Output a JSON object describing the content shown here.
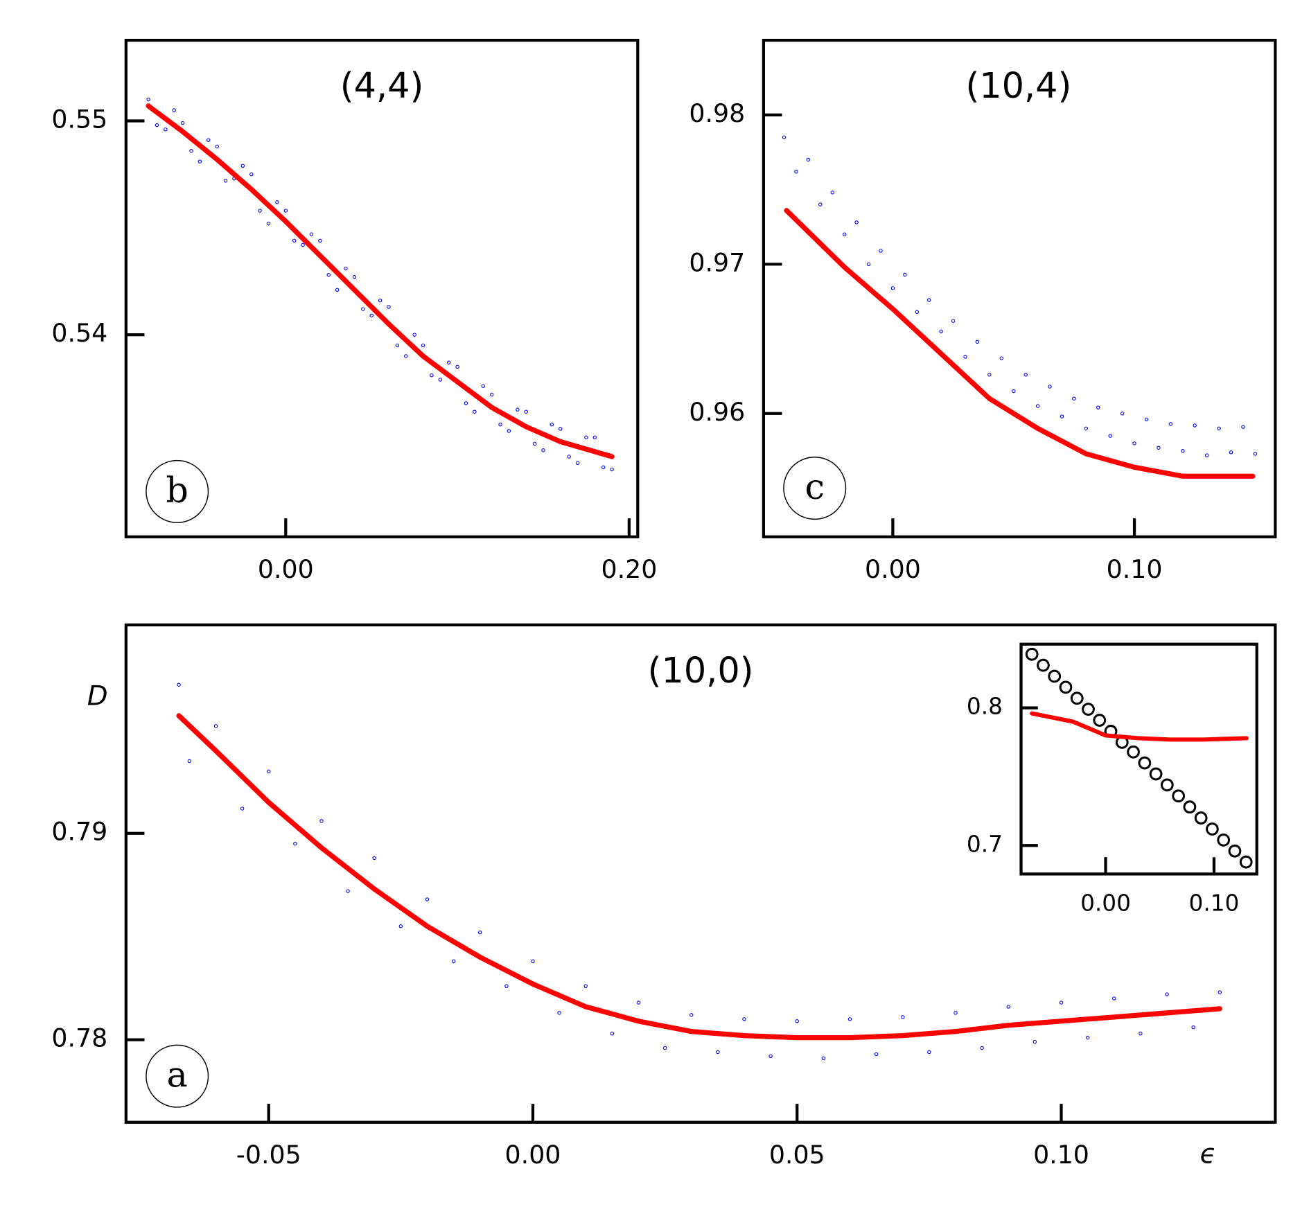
{
  "chart_data": [
    {
      "type": "scatter",
      "title": "(4,4)",
      "annotation": "b",
      "xlim": [
        -0.093,
        0.205
      ],
      "ylim": [
        0.53055,
        0.55377
      ],
      "xticks": [
        {
          "value": 0,
          "label": "0.00"
        },
        {
          "value": 0.2,
          "label": "0.20"
        }
      ],
      "yticks": [
        0.54,
        0.55
      ],
      "series": [
        {
          "type": "scatter",
          "color": "#0000ff",
          "x": [
            -0.08,
            -0.07,
            -0.06,
            -0.05,
            -0.04,
            -0.03,
            -0.02,
            -0.01,
            0,
            0.01,
            0.02,
            0.03,
            0.04,
            0.05,
            0.06,
            0.07,
            0.08,
            0.09,
            0.1,
            0.11,
            0.12,
            0.13,
            0.14,
            0.15,
            0.16,
            0.17,
            0.18,
            0.19,
            -0.075,
            -0.065,
            -0.055,
            -0.045,
            -0.035,
            -0.025,
            -0.015,
            -0.005,
            0.005,
            0.015,
            0.025,
            0.035,
            0.045,
            0.055,
            0.065,
            0.075,
            0.085,
            0.095,
            0.105,
            0.115,
            0.125,
            0.135,
            0.145,
            0.155,
            0.165,
            0.175,
            0.185
          ],
          "values": [
            0.551,
            0.5496,
            0.5499,
            0.5481,
            0.5488,
            0.5473,
            0.5475,
            0.5452,
            0.5458,
            0.5442,
            0.5444,
            0.5421,
            0.5427,
            0.5409,
            0.5413,
            0.539,
            0.5395,
            0.5379,
            0.5385,
            0.5364,
            0.5372,
            0.5355,
            0.5364,
            0.5346,
            0.5356,
            0.534,
            0.5352,
            0.5337,
            0.5498,
            0.5505,
            0.5486,
            0.5491,
            0.5472,
            0.5479,
            0.5458,
            0.5462,
            0.5444,
            0.5447,
            0.5428,
            0.5431,
            0.5412,
            0.5416,
            0.5395,
            0.54,
            0.5381,
            0.5387,
            0.5368,
            0.5376,
            0.5358,
            0.5365,
            0.5349,
            0.5358,
            0.5343,
            0.5352,
            0.5338
          ]
        },
        {
          "type": "line",
          "color": "#ff0000",
          "x": [
            -0.08,
            -0.06,
            -0.04,
            -0.02,
            0,
            0.02,
            0.04,
            0.06,
            0.08,
            0.1,
            0.12,
            0.14,
            0.16,
            0.19
          ],
          "values": [
            0.5507,
            0.5495,
            0.5482,
            0.5468,
            0.5453,
            0.5437,
            0.5421,
            0.5405,
            0.539,
            0.5378,
            0.5366,
            0.5357,
            0.535,
            0.5343
          ]
        }
      ]
    },
    {
      "type": "scatter",
      "title": "(10,4)",
      "annotation": "c",
      "xlim": [
        -0.0535,
        0.1583
      ],
      "ylim": [
        0.95174,
        0.985
      ],
      "xticks": [
        {
          "value": 0,
          "label": "0.00"
        },
        {
          "value": 0.1,
          "label": "0.10"
        }
      ],
      "yticks": [
        0.96,
        0.97,
        0.98
      ],
      "series": [
        {
          "type": "scatter",
          "color": "#0000ff",
          "x": [
            -0.045,
            -0.04,
            -0.035,
            -0.03,
            -0.025,
            -0.02,
            -0.015,
            -0.01,
            -0.005,
            0,
            0.005,
            0.01,
            0.015,
            0.02,
            0.025,
            0.03,
            0.035,
            0.04,
            0.045,
            0.05,
            0.055,
            0.06,
            0.065,
            0.07,
            0.075,
            0.08,
            0.085,
            0.09,
            0.095,
            0.1,
            0.105,
            0.11,
            0.115,
            0.12,
            0.125,
            0.13,
            0.135,
            0.14,
            0.145,
            0.15
          ],
          "values": [
            0.9785,
            0.9762,
            0.977,
            0.974,
            0.9748,
            0.972,
            0.9728,
            0.97,
            0.9709,
            0.9684,
            0.9693,
            0.9668,
            0.9676,
            0.9655,
            0.9662,
            0.9638,
            0.9648,
            0.9626,
            0.9637,
            0.9615,
            0.9626,
            0.9605,
            0.9618,
            0.9598,
            0.961,
            0.959,
            0.9604,
            0.9585,
            0.96,
            0.958,
            0.9596,
            0.9577,
            0.9593,
            0.9575,
            0.9592,
            0.9572,
            0.959,
            0.9574,
            0.9591,
            0.9573
          ]
        },
        {
          "type": "line",
          "color": "#ff0000",
          "x": [
            -0.044,
            -0.02,
            0,
            0.02,
            0.04,
            0.06,
            0.08,
            0.1,
            0.12,
            0.149
          ],
          "values": [
            0.9736,
            0.9698,
            0.967,
            0.964,
            0.961,
            0.959,
            0.9573,
            0.9564,
            0.9558,
            0.9558
          ]
        }
      ]
    },
    {
      "type": "scatter",
      "title": "(10,0)",
      "annotation": "a",
      "xlabel": "ϵ",
      "ylabel": "D",
      "xlim": [
        -0.077,
        0.1405
      ],
      "ylim": [
        0.776,
        0.8001
      ],
      "xticks": [
        -0.05,
        {
          "value": 0,
          "label": "0.00"
        },
        0.05,
        {
          "value": 0.1,
          "label": "0.10"
        }
      ],
      "yticks": [
        0.78,
        0.79
      ],
      "series": [
        {
          "type": "scatter",
          "color": "#0000ff",
          "x": [
            -0.067,
            -0.065,
            -0.06,
            -0.055,
            -0.05,
            -0.045,
            -0.04,
            -0.035,
            -0.03,
            -0.025,
            -0.02,
            -0.015,
            -0.01,
            -0.005,
            0,
            0.005,
            0.01,
            0.015,
            0.02,
            0.025,
            0.03,
            0.035,
            0.04,
            0.045,
            0.05,
            0.055,
            0.06,
            0.065,
            0.07,
            0.075,
            0.08,
            0.085,
            0.09,
            0.095,
            0.1,
            0.105,
            0.11,
            0.115,
            0.12,
            0.125,
            0.13
          ],
          "values": [
            0.7972,
            0.7935,
            0.7952,
            0.7912,
            0.793,
            0.7895,
            0.7906,
            0.7872,
            0.7888,
            0.7855,
            0.7868,
            0.7838,
            0.7852,
            0.7826,
            0.7838,
            0.7813,
            0.7826,
            0.7803,
            0.7818,
            0.7796,
            0.7812,
            0.7794,
            0.781,
            0.7792,
            0.7809,
            0.7791,
            0.781,
            0.7793,
            0.7811,
            0.7794,
            0.7813,
            0.7796,
            0.7816,
            0.7799,
            0.7818,
            0.7801,
            0.782,
            0.7803,
            0.7822,
            0.7806,
            0.7823
          ]
        },
        {
          "type": "line",
          "color": "#ff0000",
          "x": [
            -0.067,
            -0.06,
            -0.05,
            -0.04,
            -0.03,
            -0.02,
            -0.01,
            0,
            0.01,
            0.02,
            0.03,
            0.04,
            0.05,
            0.06,
            0.07,
            0.08,
            0.09,
            0.1,
            0.11,
            0.12,
            0.13
          ],
          "values": [
            0.7957,
            0.794,
            0.7915,
            0.7893,
            0.7873,
            0.7855,
            0.784,
            0.7827,
            0.7816,
            0.7809,
            0.7804,
            0.7802,
            0.7801,
            0.7801,
            0.7802,
            0.7804,
            0.7807,
            0.7809,
            0.7811,
            0.7813,
            0.7815
          ]
        }
      ]
    },
    {
      "type": "scatter",
      "xlim": [
        -0.078,
        0.1395
      ],
      "ylim": [
        0.6793,
        0.8463
      ],
      "xticks": [
        {
          "value": 0,
          "label": "0.00"
        },
        {
          "value": 0.1,
          "label": "0.10"
        }
      ],
      "yticks": [
        0.7,
        0.8
      ],
      "series": [
        {
          "type": "scatter",
          "marker": "open-circle",
          "color": "#000000",
          "x": [
            -0.068,
            -0.0576,
            -0.0472,
            -0.0368,
            -0.0264,
            -0.016,
            -0.0056,
            0.0048,
            0.0152,
            0.0256,
            0.036,
            0.0464,
            0.0568,
            0.0672,
            0.0776,
            0.088,
            0.0984,
            0.1088,
            0.1192,
            0.1296
          ],
          "values": [
            0.839,
            0.831,
            0.823,
            0.815,
            0.807,
            0.799,
            0.791,
            0.783,
            0.775,
            0.768,
            0.76,
            0.752,
            0.744,
            0.736,
            0.728,
            0.72,
            0.712,
            0.704,
            0.696,
            0.688
          ]
        },
        {
          "type": "line",
          "color": "#ff0000",
          "x": [
            -0.068,
            -0.03,
            0,
            0.03,
            0.06,
            0.09,
            0.13
          ],
          "values": [
            0.796,
            0.79,
            0.78,
            0.778,
            0.777,
            0.777,
            0.778
          ]
        }
      ]
    }
  ]
}
